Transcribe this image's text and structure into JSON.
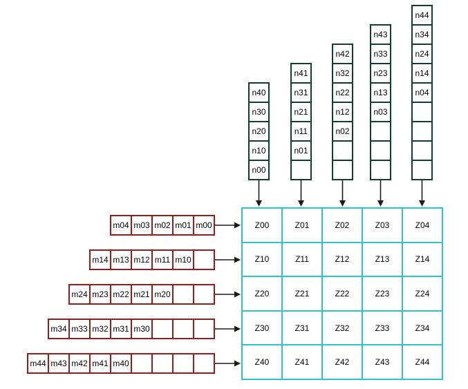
{
  "colors": {
    "n_border": "#113d2c",
    "m_border": "#9b1b1b",
    "z_border": "#2cc4c6",
    "arrow": "#1a1a1a",
    "text": "#000000",
    "background": "#ffffff"
  },
  "n_columns": [
    {
      "cells": [
        "n40",
        "n30",
        "n20",
        "n10",
        "n00"
      ]
    },
    {
      "cells": [
        "n41",
        "n31",
        "n21",
        "n11",
        "n01",
        ""
      ]
    },
    {
      "cells": [
        "n42",
        "n32",
        "n22",
        "n12",
        "n02",
        "",
        ""
      ]
    },
    {
      "cells": [
        "n43",
        "n33",
        "n23",
        "n13",
        "n03",
        "",
        "",
        ""
      ]
    },
    {
      "cells": [
        "n44",
        "n34",
        "n24",
        "n14",
        "n04",
        "",
        "",
        "",
        ""
      ]
    }
  ],
  "m_rows": [
    {
      "cells": [
        "m04",
        "m03",
        "m02",
        "m01",
        "m00"
      ]
    },
    {
      "cells": [
        "m14",
        "m13",
        "m12",
        "m11",
        "m10",
        ""
      ]
    },
    {
      "cells": [
        "m24",
        "m23",
        "m22",
        "m21",
        "m20",
        "",
        ""
      ]
    },
    {
      "cells": [
        "m34",
        "m33",
        "m32",
        "m31",
        "m30",
        "",
        "",
        ""
      ]
    },
    {
      "cells": [
        "m44",
        "m43",
        "m42",
        "m41",
        "m40",
        "",
        "",
        "",
        ""
      ]
    }
  ],
  "z_grid": {
    "rows": [
      [
        "Z00",
        "Z01",
        "Z02",
        "Z03",
        "Z04"
      ],
      [
        "Z10",
        "Z11",
        "Z12",
        "Z13",
        "Z14"
      ],
      [
        "Z20",
        "Z21",
        "Z22",
        "Z23",
        "Z24"
      ],
      [
        "Z30",
        "Z31",
        "Z32",
        "Z33",
        "Z34"
      ],
      [
        "Z40",
        "Z41",
        "Z42",
        "Z43",
        "Z44"
      ]
    ]
  }
}
